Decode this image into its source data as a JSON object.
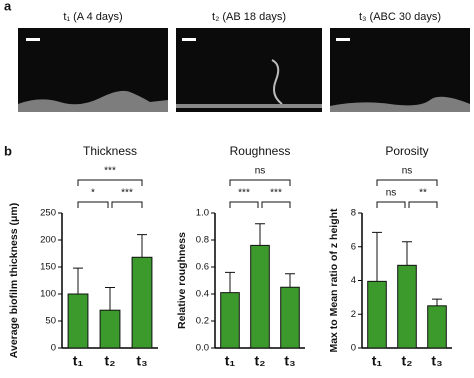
{
  "panel_a": {
    "label": "a",
    "images": [
      {
        "title": "t₁ (A 4 days)"
      },
      {
        "title": "t₂ (AB 18 days)"
      },
      {
        "title": "t₃ (ABC 30 days)"
      }
    ]
  },
  "panel_b": {
    "label": "b"
  },
  "chart_data": [
    {
      "type": "bar",
      "title": "Thickness",
      "ylabel": "Average biofilm thickness (μm)",
      "categories": [
        "t₁",
        "t₂",
        "t₃"
      ],
      "values": [
        100,
        70,
        168
      ],
      "errors": [
        48,
        42,
        42
      ],
      "color": "#3c9a2c",
      "ylim": [
        0,
        250
      ],
      "yticks": [
        0,
        50,
        100,
        150,
        200,
        250
      ],
      "annotations": [
        {
          "text": "***",
          "from": 0,
          "to": 2
        },
        {
          "text": "*",
          "from": 0,
          "to": 1
        },
        {
          "text": "***",
          "from": 1,
          "to": 2
        }
      ]
    },
    {
      "type": "bar",
      "title": "Roughness",
      "ylabel": "Relative roughness",
      "categories": [
        "t₁",
        "t₂",
        "t₃"
      ],
      "values": [
        0.41,
        0.76,
        0.45
      ],
      "errors": [
        0.15,
        0.16,
        0.1
      ],
      "color": "#3c9a2c",
      "ylim": [
        0,
        1
      ],
      "yticks": [
        {
          "value": 0,
          "label": "0.0"
        },
        0.2,
        0.4,
        0.6,
        0.8,
        {
          "value": 1,
          "label": "1.0"
        }
      ],
      "annotations": [
        {
          "text": "ns",
          "from": 0,
          "to": 2
        },
        {
          "text": "***",
          "from": 0,
          "to": 1
        },
        {
          "text": "***",
          "from": 1,
          "to": 2
        }
      ]
    },
    {
      "type": "bar",
      "title": "Porosity",
      "ylabel": "Max to Mean ratio of z height",
      "categories": [
        "t₁",
        "t₂",
        "t₃"
      ],
      "values": [
        3.95,
        4.9,
        2.5
      ],
      "errors": [
        2.9,
        1.4,
        0.4
      ],
      "color": "#3c9a2c",
      "ylim": [
        0,
        8
      ],
      "yticks": [
        0,
        2,
        4,
        6,
        8
      ],
      "annotations": [
        {
          "text": "ns",
          "from": 0,
          "to": 2
        },
        {
          "text": "ns",
          "from": 0,
          "to": 1
        },
        {
          "text": "**",
          "from": 1,
          "to": 2
        }
      ]
    }
  ]
}
